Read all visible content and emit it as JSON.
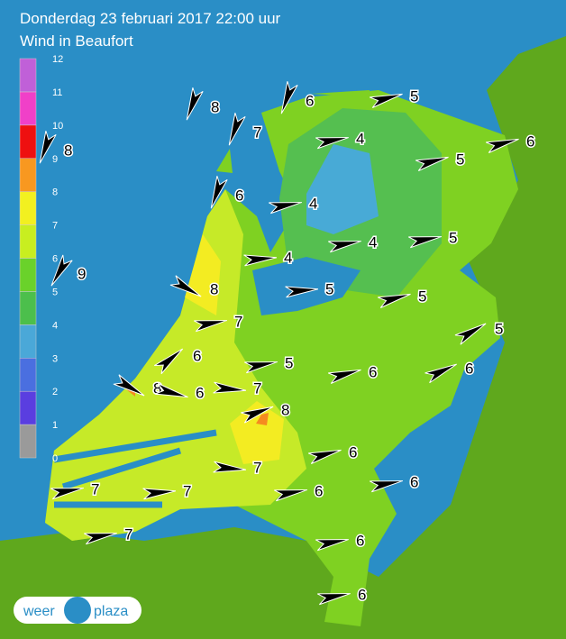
{
  "header": {
    "title": "Donderdag 23 februari 2017 22:00 uur",
    "subtitle": "Wind in Beaufort"
  },
  "legend": {
    "labels": [
      "0",
      "1",
      "2",
      "3",
      "4",
      "5",
      "6",
      "7",
      "8",
      "9",
      "10",
      "11",
      "12"
    ]
  },
  "stations": [
    {
      "label": "8"
    },
    {
      "label": "6"
    },
    {
      "label": "7"
    },
    {
      "label": "5"
    },
    {
      "label": "4"
    },
    {
      "label": "6"
    },
    {
      "label": "5"
    },
    {
      "label": "8"
    },
    {
      "label": "6"
    },
    {
      "label": "4"
    },
    {
      "label": "4"
    },
    {
      "label": "5"
    },
    {
      "label": "4"
    },
    {
      "label": "9"
    },
    {
      "label": "8"
    },
    {
      "label": "5"
    },
    {
      "label": "5"
    },
    {
      "label": "7"
    },
    {
      "label": "5"
    },
    {
      "label": "6"
    },
    {
      "label": "5"
    },
    {
      "label": "6"
    },
    {
      "label": "6"
    },
    {
      "label": "8"
    },
    {
      "label": "6"
    },
    {
      "label": "7"
    },
    {
      "label": "8"
    },
    {
      "label": "7"
    },
    {
      "label": "6"
    },
    {
      "label": "7"
    },
    {
      "label": "7"
    },
    {
      "label": "6"
    },
    {
      "label": "6"
    },
    {
      "label": "7"
    },
    {
      "label": "6"
    },
    {
      "label": "6"
    }
  ],
  "logo": {
    "left": "weer",
    "right": "plaza"
  }
}
